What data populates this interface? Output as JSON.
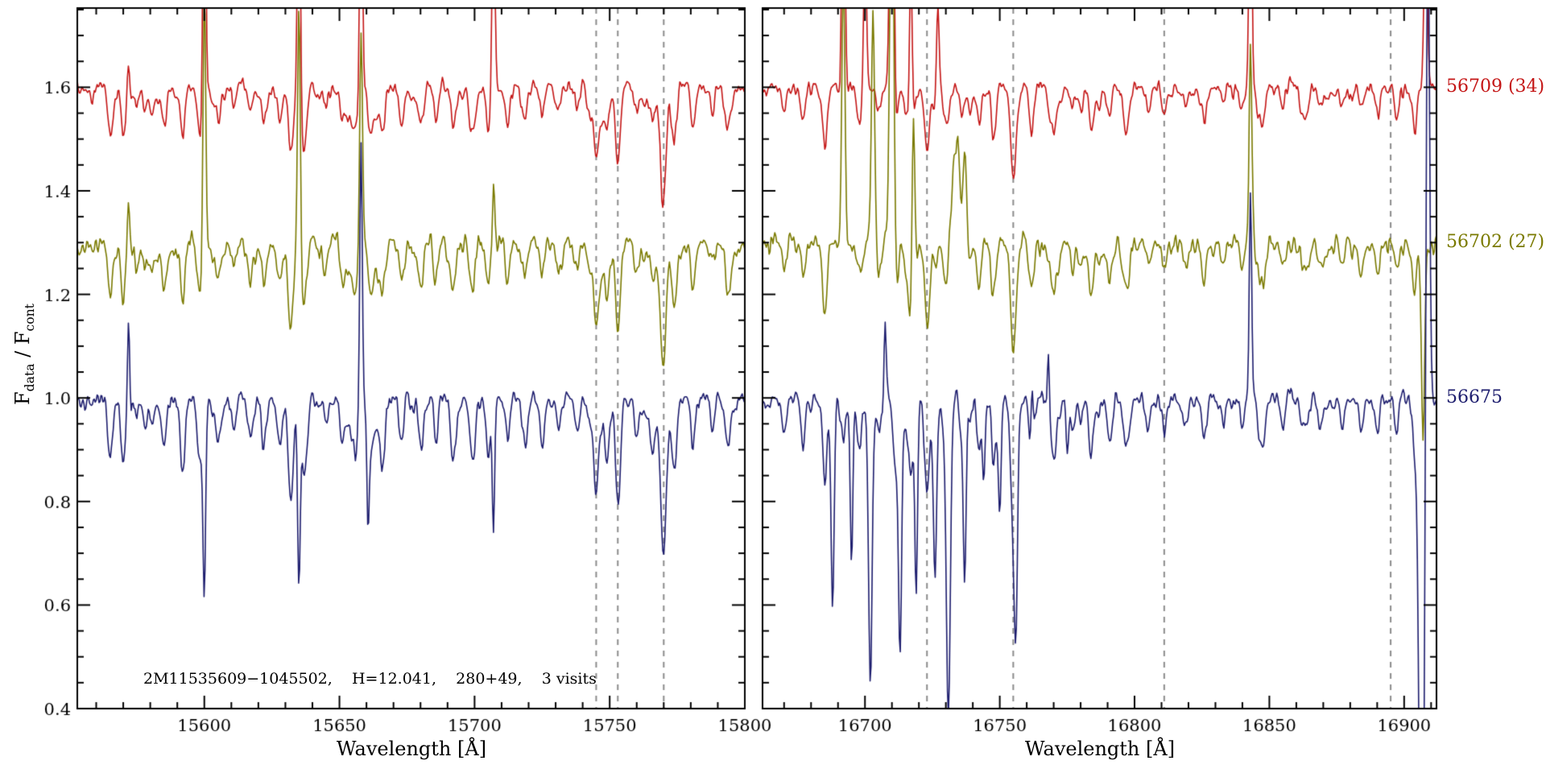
{
  "chart_data": {
    "type": "line",
    "title": "",
    "annotation": "2M11535609−1045502,    H=12.041,    280+49,    3 visits",
    "ylabel_parts": [
      {
        "text": "F"
      },
      {
        "sub": "data"
      },
      {
        "text": " / F"
      },
      {
        "sub": "cont"
      }
    ],
    "colors": {
      "red": "#c41616",
      "olive": "#7a7a00",
      "navy": "#1d1d6e",
      "dashed": "#8c8c8c",
      "axis": "#000000",
      "background": "#ffffff"
    },
    "yaxis": {
      "lim": [
        0.4,
        1.753
      ],
      "ticks": [
        0.4,
        0.6,
        0.8,
        1.0,
        1.2,
        1.4,
        1.6
      ],
      "tick_labels": [
        "0.4",
        "0.6",
        "0.8",
        "1.0",
        "1.2",
        "1.4",
        "1.6"
      ],
      "minor_step": 0.05
    },
    "panels": [
      {
        "xlabel": "Wavelength [Å]",
        "xlim": [
          15553,
          15800
        ],
        "xticks": [
          15600,
          15650,
          15700,
          15750,
          15800
        ],
        "xtick_labels": [
          "15600",
          "15650",
          "15700",
          "15750",
          "15800"
        ],
        "minor_step": 10,
        "dashed_lines": [
          15745,
          15753,
          15770
        ],
        "lines": [
          [
            15565,
            0.07,
            0.8
          ],
          [
            15570,
            0.09,
            0.7
          ],
          [
            15578,
            0.05,
            0.7
          ],
          [
            15585,
            0.06,
            0.8
          ],
          [
            15592,
            0.12,
            0.8
          ],
          [
            15598,
            0.07,
            0.8
          ],
          [
            15605,
            0.06,
            0.8
          ],
          [
            15611,
            0.05,
            0.7
          ],
          [
            15617,
            0.06,
            0.8
          ],
          [
            15622,
            0.08,
            0.8
          ],
          [
            15628,
            0.07,
            0.8
          ],
          [
            15632,
            0.16,
            0.9
          ],
          [
            15637,
            0.08,
            0.8
          ],
          [
            15645,
            0.05,
            0.8
          ],
          [
            15651,
            0.06,
            0.8
          ],
          [
            15656,
            0.07,
            0.8
          ],
          [
            15662,
            0.06,
            0.8
          ],
          [
            15666,
            0.1,
            0.9
          ],
          [
            15673,
            0.08,
            0.8
          ],
          [
            15680,
            0.05,
            0.8
          ],
          [
            15686,
            0.04,
            0.8
          ],
          [
            15692,
            0.09,
            0.9
          ],
          [
            15700,
            0.05,
            0.8
          ],
          [
            15705,
            0.06,
            0.8
          ],
          [
            15712,
            0.04,
            0.8
          ],
          [
            15719,
            0.05,
            0.8
          ],
          [
            15725,
            0.07,
            0.9
          ],
          [
            15731,
            0.04,
            0.8
          ],
          [
            15738,
            0.05,
            0.8
          ],
          [
            15745,
            0.13,
            0.9
          ],
          [
            15749,
            0.08,
            0.8
          ],
          [
            15753,
            0.17,
            0.9
          ],
          [
            15760,
            0.06,
            0.8
          ],
          [
            15766,
            0.08,
            0.9
          ],
          [
            15770,
            0.22,
            1.0
          ],
          [
            15774,
            0.1,
            0.9
          ],
          [
            15781,
            0.06,
            0.8
          ],
          [
            15788,
            0.05,
            0.8
          ],
          [
            15794,
            0.06,
            0.8
          ]
        ]
      },
      {
        "xlabel": "Wavelength [Å]",
        "xlim": [
          16662,
          16912
        ],
        "xticks": [
          16700,
          16750,
          16800,
          16850,
          16900
        ],
        "xtick_labels": [
          "16700",
          "16750",
          "16800",
          "16850",
          "16900"
        ],
        "minor_step": 10,
        "dashed_lines": [
          16723,
          16755,
          16811,
          16895
        ],
        "lines": [
          [
            16670,
            0.05,
            0.8
          ],
          [
            16677,
            0.06,
            0.8
          ],
          [
            16685,
            0.1,
            0.9
          ],
          [
            16692,
            0.07,
            0.8
          ],
          [
            16698,
            0.08,
            0.9
          ],
          [
            16705,
            0.06,
            0.8
          ],
          [
            16711,
            0.07,
            0.8
          ],
          [
            16717,
            0.08,
            0.8
          ],
          [
            16723,
            0.15,
            0.9
          ],
          [
            16730,
            0.07,
            0.8
          ],
          [
            16736,
            0.06,
            0.8
          ],
          [
            16742,
            0.05,
            0.8
          ],
          [
            16748,
            0.06,
            0.8
          ],
          [
            16755,
            0.18,
            1.0
          ],
          [
            16762,
            0.08,
            0.9
          ],
          [
            16770,
            0.09,
            0.9
          ],
          [
            16777,
            0.05,
            0.8
          ],
          [
            16784,
            0.06,
            0.8
          ],
          [
            16791,
            0.04,
            0.8
          ],
          [
            16798,
            0.05,
            0.8
          ],
          [
            16805,
            0.04,
            0.8
          ],
          [
            16811,
            0.05,
            0.8
          ],
          [
            16819,
            0.04,
            0.8
          ],
          [
            16826,
            0.05,
            0.8
          ],
          [
            16833,
            0.04,
            0.8
          ],
          [
            16840,
            0.05,
            0.8
          ],
          [
            16848,
            0.04,
            0.8
          ],
          [
            16855,
            0.05,
            0.8
          ],
          [
            16862,
            0.04,
            0.8
          ],
          [
            16869,
            0.05,
            0.8
          ],
          [
            16877,
            0.04,
            0.8
          ],
          [
            16884,
            0.05,
            0.8
          ],
          [
            16890,
            0.04,
            0.8
          ],
          [
            16897,
            0.05,
            0.8
          ],
          [
            16904,
            0.04,
            0.8
          ]
        ]
      }
    ],
    "visits": [
      {
        "label": "56709 (34)",
        "color_key": "red",
        "offset": 1.6,
        "noise_sigma": 0.012,
        "line_depth_scale": 0.85,
        "seed": 11,
        "spikes": [
          [
            [
              15572,
              0.08,
              0.45
            ],
            [
              15600,
              0.62,
              0.5
            ],
            [
              15635,
              0.55,
              0.5
            ],
            [
              15658,
              0.5,
              0.5
            ],
            [
              15707,
              0.42,
              0.5
            ]
          ],
          [
            [
              16692,
              0.55,
              0.6
            ],
            [
              16700,
              0.3,
              0.5
            ],
            [
              16710,
              0.75,
              0.7
            ],
            [
              16717,
              0.35,
              0.5
            ],
            [
              16727,
              0.2,
              0.5
            ],
            [
              16843,
              0.5,
              0.5
            ],
            [
              16908,
              0.35,
              0.6
            ]
          ]
        ]
      },
      {
        "label": "56702 (27)",
        "color_key": "olive",
        "offset": 1.3,
        "noise_sigma": 0.016,
        "line_depth_scale": 1.0,
        "seed": 22,
        "spikes": [
          [
            [
              15572,
              0.14,
              0.45
            ],
            [
              15600,
              0.5,
              0.5
            ],
            [
              15635,
              0.48,
              0.5
            ],
            [
              15658,
              0.42,
              0.5
            ],
            [
              15707,
              0.12,
              0.45
            ]
          ],
          [
            [
              16692,
              0.6,
              0.6
            ],
            [
              16703,
              0.45,
              0.6
            ],
            [
              16710,
              0.85,
              0.7
            ],
            [
              16718,
              0.3,
              0.5
            ],
            [
              16734,
              0.2,
              1.6
            ],
            [
              16737,
              0.18,
              0.6
            ],
            [
              16843,
              0.38,
              0.5
            ],
            [
              16907,
              -0.35,
              0.6
            ]
          ]
        ]
      },
      {
        "label": "56675",
        "color_key": "navy",
        "offset": 1.0,
        "noise_sigma": 0.013,
        "line_depth_scale": 1.25,
        "seed": 33,
        "spikes": [
          [
            [
              15572,
              0.2,
              0.4
            ],
            [
              15600,
              -0.36,
              0.5
            ],
            [
              15635,
              -0.34,
              0.5
            ],
            [
              15658,
              0.52,
              0.45
            ],
            [
              15660.5,
              -0.2,
              0.4
            ],
            [
              15707,
              -0.24,
              0.45
            ]
          ],
          [
            [
              16688,
              -0.4,
              0.6
            ],
            [
              16695,
              -0.32,
              0.5
            ],
            [
              16702,
              -0.55,
              0.7
            ],
            [
              16707.5,
              0.14,
              0.4
            ],
            [
              16713,
              -0.5,
              0.6
            ],
            [
              16719,
              -0.36,
              0.5
            ],
            [
              16726,
              -0.3,
              0.6
            ],
            [
              16731,
              -0.55,
              0.7
            ],
            [
              16737,
              -0.32,
              0.5
            ],
            [
              16744,
              -0.16,
              0.5
            ],
            [
              16750,
              -0.22,
              0.5
            ],
            [
              16756,
              -0.3,
              0.6
            ],
            [
              16762,
              0.12,
              0.4
            ],
            [
              16768,
              0.12,
              0.4
            ],
            [
              16775,
              -0.1,
              0.5
            ],
            [
              16843,
              0.4,
              0.45
            ],
            [
              16906.5,
              -1.2,
              0.9
            ],
            [
              16908.8,
              1.0,
              0.6
            ]
          ]
        ]
      }
    ]
  }
}
